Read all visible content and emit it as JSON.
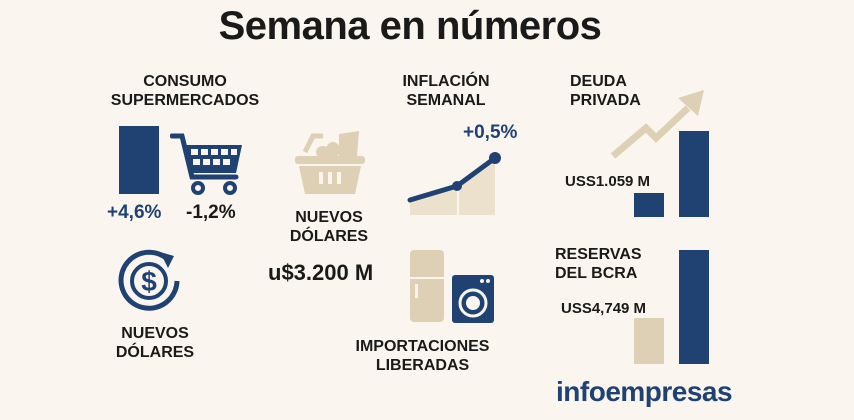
{
  "title": "Semana en números",
  "colors": {
    "background": "#faf6ef",
    "navy": "#1f4273",
    "beige": "#ddd0b4"
  },
  "consumo": {
    "label_line1": "CONSUMO",
    "label_line2": "SUPERMERCADOS",
    "value_up": "+4,6%",
    "value_down": "-1,2%",
    "icons": [
      "bar-icon",
      "shopping-cart-icon"
    ]
  },
  "nuevos_dolares_left": {
    "label_line1": "NUEVOS",
    "label_line2": "DÓLARES",
    "icon": "dollar-cycle-icon"
  },
  "nuevos_dolares_center": {
    "label_line1": "NUEVOS",
    "label_line2": "DÓLARES",
    "value": "u$3.200 M",
    "icon": "grocery-basket-icon"
  },
  "inflacion": {
    "label_line1": "INFLACIÓN",
    "label_line2": "SEMANAL",
    "value": "+0,5%",
    "icon": "rising-line-chart-icon"
  },
  "importaciones": {
    "label_line1": "IMPORTACIONES",
    "label_line2": "LIBERADAS",
    "icons": [
      "refrigerator-icon",
      "washing-machine-icon"
    ]
  },
  "deuda": {
    "label_line1": "DEUDA",
    "label_line2": "PRIVADA",
    "value": "USS1.059 M",
    "icon": "trend-arrow-icon"
  },
  "reservas": {
    "label_line1": "RESERVAS",
    "label_line2": "DEL BCRA",
    "value": "USS4,749 M"
  },
  "logo": {
    "part1": "info",
    "part2": "empresas"
  }
}
